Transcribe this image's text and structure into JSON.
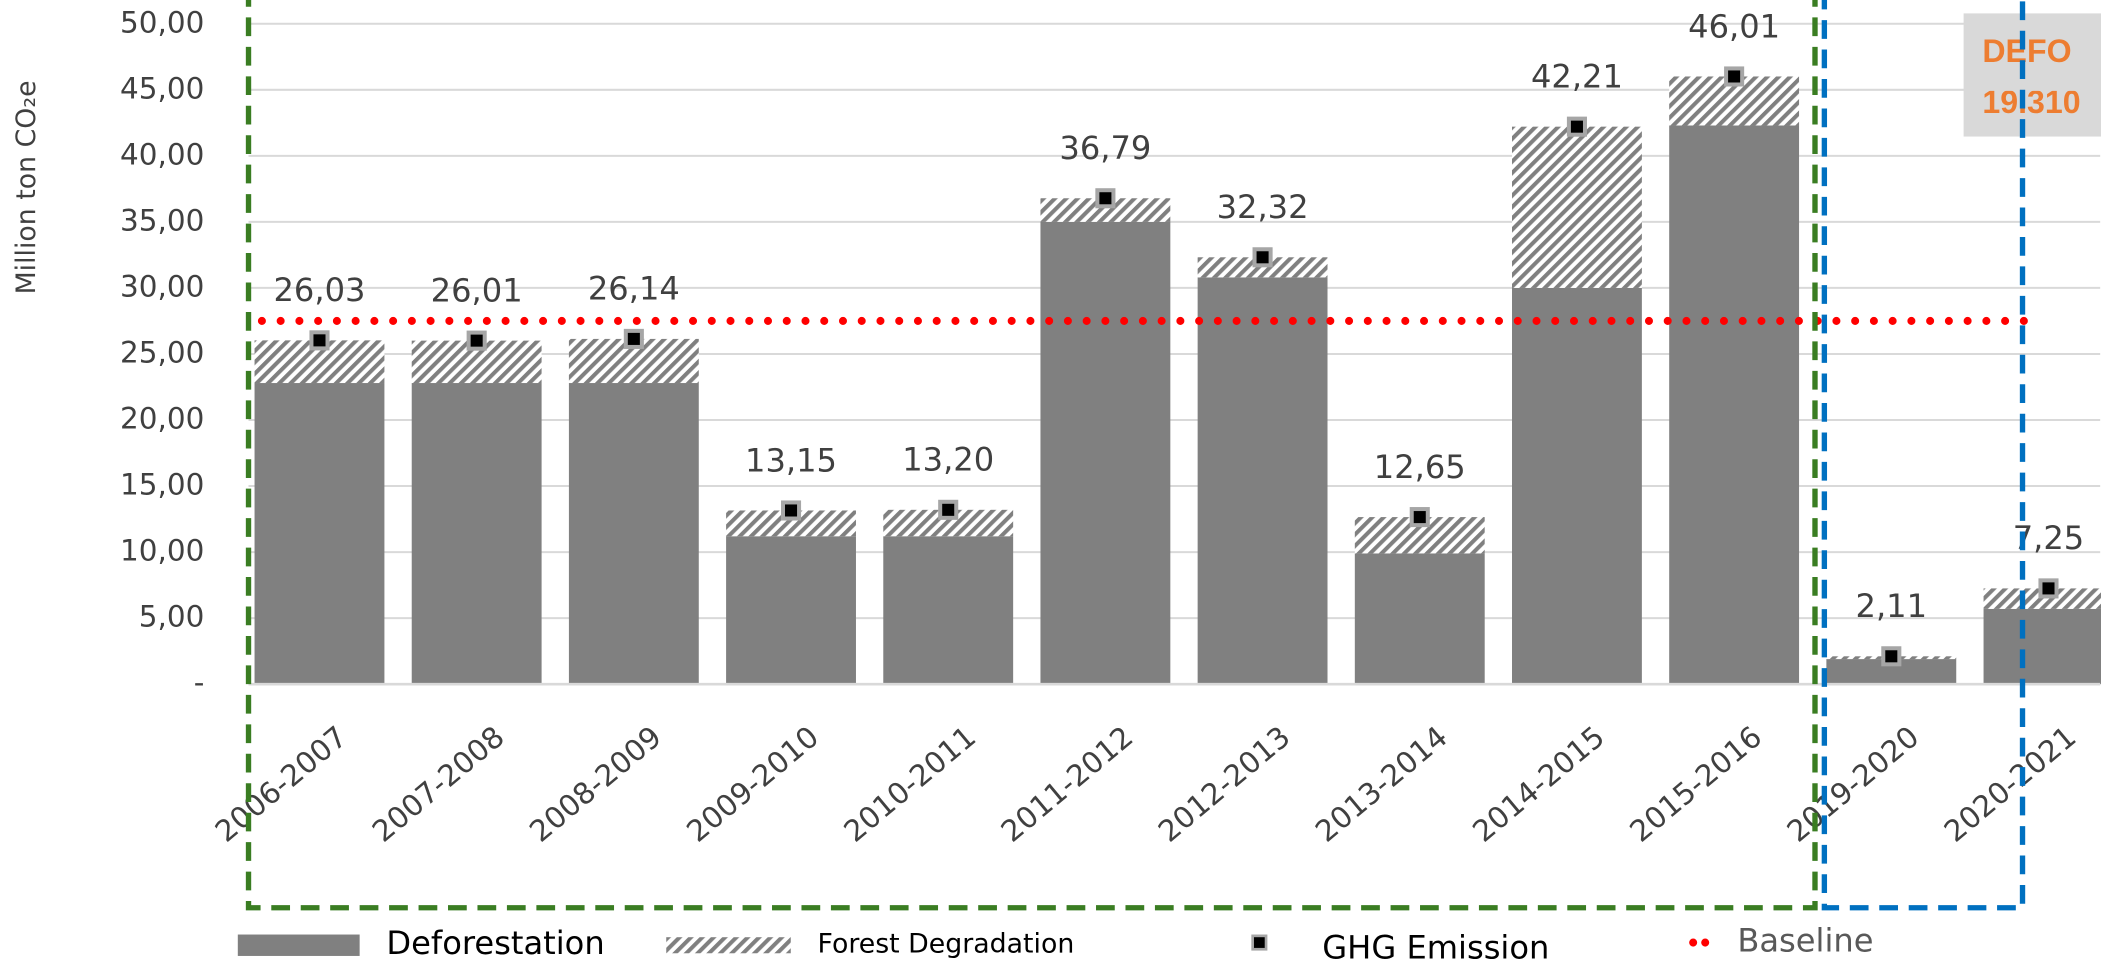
{
  "chart_data": {
    "type": "bar",
    "stacked": true,
    "y_label": "Million ton CO₂e",
    "categories": [
      "2006-2007",
      "2007-2008",
      "2008-2009",
      "2009-2010",
      "2010-2011",
      "2011-2012",
      "2012-2013",
      "2013-2014",
      "2014-2015",
      "2015-2016",
      "2019-2020",
      "2020-2021"
    ],
    "series": [
      {
        "name": "Deforestation",
        "color": "#808080",
        "values": [
          22.8,
          22.8,
          22.8,
          11.2,
          11.2,
          35.0,
          30.8,
          9.9,
          30.0,
          42.3,
          1.9,
          5.7
        ]
      },
      {
        "name": "Forest Degradation",
        "color": "#808080",
        "pattern": "hatch",
        "values": [
          3.23,
          3.21,
          3.34,
          1.95,
          2.0,
          1.79,
          1.52,
          2.75,
          12.21,
          3.71,
          0.21,
          1.55
        ]
      },
      {
        "name": "GHG Emission",
        "type": "marker",
        "color": "#000000",
        "values": [
          26.03,
          26.01,
          26.14,
          13.15,
          13.2,
          36.79,
          32.32,
          12.65,
          42.21,
          46.01,
          2.11,
          7.25
        ],
        "value_labels": [
          "26,03",
          "26,01",
          "26,14",
          "13,15",
          "13,20",
          "36,79",
          "32,32",
          "12,65",
          "42,21",
          "46,01",
          "2,11",
          "7,25"
        ]
      }
    ],
    "baseline": {
      "name": "Baseline",
      "value": 27.5,
      "color": "#ff0000"
    },
    "ylim": [
      0,
      51.8
    ],
    "yticks": [
      {
        "value": 0,
        "label": "-"
      },
      {
        "value": 5,
        "label": "5,00"
      },
      {
        "value": 10,
        "label": "10,00"
      },
      {
        "value": 15,
        "label": "15,00"
      },
      {
        "value": 20,
        "label": "20,00"
      },
      {
        "value": 25,
        "label": "25,00"
      },
      {
        "value": 30,
        "label": "30,00"
      },
      {
        "value": 35,
        "label": "35,00"
      },
      {
        "value": 40,
        "label": "40,00"
      },
      {
        "value": 45,
        "label": "45,00"
      },
      {
        "value": 50,
        "label": "50,00"
      }
    ],
    "grid": true,
    "annotations": [
      "DEFO",
      "19.310"
    ]
  }
}
